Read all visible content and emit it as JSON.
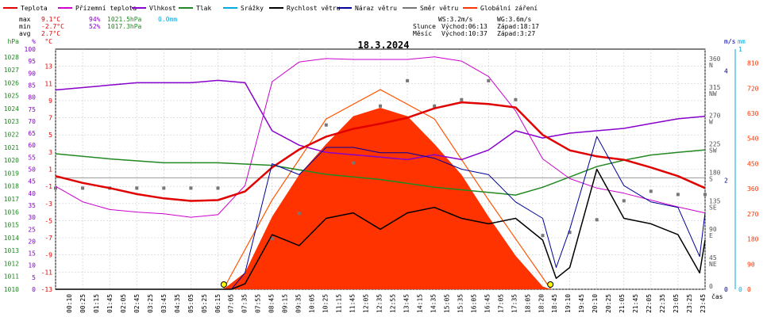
{
  "chart_data": {
    "type": "line",
    "title": "18.3.2024",
    "legend": [
      {
        "name": "Teplota",
        "color": "#e00000"
      },
      {
        "name": "Přízemní teplota",
        "color": "#cc00cc"
      },
      {
        "name": "Vlhkost",
        "color": "#8800cc"
      },
      {
        "name": "Tlak",
        "color": "#228822"
      },
      {
        "name": "Srážky",
        "color": "#00aadd"
      },
      {
        "name": "Rychlost větru",
        "color": "#000000"
      },
      {
        "name": "Náraz větru",
        "color": "#000099"
      },
      {
        "name": "Směr větru",
        "color": "#777777"
      },
      {
        "name": "Globální záření",
        "color": "#ff3300"
      }
    ],
    "stats": {
      "max": {
        "label": "max",
        "temp": "9.1°C",
        "hum": "94%",
        "press": "1021.5hPa",
        "rain": "0.0mm"
      },
      "min": {
        "label": "min",
        "temp": "-2.7°C",
        "hum": "52%",
        "press": "1017.3hPa"
      },
      "avg": {
        "label": "avg",
        "temp": "2.7°C"
      }
    },
    "wind": {
      "ws": "WS:3.2m/s",
      "wg": "WG:3.6m/s"
    },
    "sun": {
      "label": "Slunce",
      "rise": "Východ:06:13",
      "set": "Západ:18:17"
    },
    "moon": {
      "label": "Měsíc",
      "rise": "Východ:10:37",
      "set": "Západ:3:27"
    },
    "axes": {
      "hpa": {
        "unit": "hPa",
        "ticks": [
          "1010",
          "1011",
          "1012",
          "1013",
          "1014",
          "1015",
          "1016",
          "1017",
          "1018",
          "1019",
          "1020",
          "1021",
          "1022",
          "1023",
          "1024",
          "1025",
          "1026",
          "1027",
          "1028"
        ],
        "color": "#228822"
      },
      "pct": {
        "unit": "%",
        "ticks": [
          "0",
          "5",
          "10",
          "15",
          "20",
          "25",
          "30",
          "35",
          "40",
          "45",
          "50",
          "55",
          "60",
          "65",
          "70",
          "75",
          "80",
          "85",
          "90",
          "95",
          "100"
        ],
        "color": "#8800cc"
      },
      "c": {
        "unit": "°C",
        "ticks": [
          "-13",
          "-11",
          "-9",
          "-7",
          "-5",
          "-3",
          "-1",
          "1",
          "3",
          "5",
          "7",
          "9",
          "11",
          "13"
        ],
        "color": "#e00000"
      },
      "ms": {
        "unit": "m/s",
        "ticks": [
          "0",
          "2",
          "4"
        ],
        "color": "#000099"
      },
      "mm": {
        "unit": "mm",
        "ticks": [
          "0",
          "1"
        ],
        "color": "#00aadd"
      },
      "dir": {
        "ticks": [
          "0",
          "45 NE",
          "90 E",
          "135 SE",
          "180 S",
          "225 SW",
          "270 W",
          "315 NW",
          "360 N"
        ],
        "color": "#555555"
      },
      "wm2": {
        "ticks": [
          "0",
          "90",
          "180",
          "270",
          "360",
          "450",
          "540",
          "630",
          "720",
          "810"
        ],
        "color": "#ff3300"
      },
      "time": {
        "label": "čas",
        "ticks": [
          "00:10",
          "00:25",
          "01:15",
          "01:45",
          "02:05",
          "02:45",
          "03:25",
          "03:45",
          "04:35",
          "05:05",
          "05:25",
          "06:15",
          "07:05",
          "07:35",
          "07:55",
          "08:45",
          "09:15",
          "09:35",
          "10:05",
          "10:25",
          "11:15",
          "11:45",
          "12:05",
          "12:35",
          "12:55",
          "13:45",
          "14:15",
          "14:35",
          "15:05",
          "15:35",
          "16:05",
          "16:45",
          "17:05",
          "17:35",
          "18:05",
          "18:20",
          "18:45",
          "19:10",
          "19:45",
          "20:10",
          "20:25",
          "21:05",
          "21:45",
          "22:05",
          "22:35",
          "23:05",
          "23:25",
          "23:45"
        ]
      }
    },
    "series": {
      "temperature_c": {
        "x": [
          0,
          1,
          2,
          3,
          4,
          5,
          6,
          7,
          8,
          9,
          10,
          11,
          12,
          13,
          14,
          15,
          16,
          17,
          18,
          19,
          20,
          21,
          22,
          23,
          24
        ],
        "y": [
          0.2,
          -0.6,
          -1.2,
          -1.9,
          -2.4,
          -2.7,
          -2.6,
          -1.6,
          1.2,
          3.3,
          4.8,
          5.7,
          6.3,
          7.0,
          8.1,
          8.8,
          8.6,
          8.2,
          5.0,
          3.2,
          2.5,
          2.1,
          1.2,
          0.2,
          -1.2
        ]
      },
      "ground_temperature_c": {
        "x": [
          0,
          1,
          2,
          3,
          4,
          5,
          6,
          7,
          8,
          9,
          10,
          11,
          12,
          13,
          14,
          15,
          16,
          17,
          18,
          19,
          20,
          21,
          22,
          23,
          24
        ],
        "y": [
          -1.0,
          -2.8,
          -3.7,
          -4.0,
          -4.2,
          -4.6,
          -4.3,
          -0.9,
          11.2,
          13.5,
          13.9,
          13.8,
          13.8,
          13.8,
          14.1,
          13.6,
          11.8,
          7.8,
          2.2,
          -0.1,
          -1.2,
          -1.8,
          -2.6,
          -3.4,
          -4.1
        ]
      },
      "humidity_pct": {
        "x": [
          0,
          1,
          2,
          3,
          4,
          5,
          6,
          7,
          8,
          9,
          10,
          11,
          12,
          13,
          14,
          15,
          16,
          17,
          18,
          19,
          20,
          21,
          22,
          23,
          24
        ],
        "y": [
          83,
          84,
          85,
          86,
          86,
          86,
          87,
          86,
          66,
          60,
          57,
          56,
          55,
          54,
          56,
          54,
          58,
          66,
          63,
          65,
          66,
          67,
          69,
          71,
          72
        ]
      },
      "pressure_hpa": {
        "x": [
          0,
          2,
          4,
          6,
          8,
          10,
          12,
          14,
          16,
          17,
          18,
          19,
          20,
          21,
          22,
          23,
          24
        ],
        "y": [
          1020.5,
          1020.1,
          1019.8,
          1019.8,
          1019.6,
          1018.9,
          1018.5,
          1017.9,
          1017.5,
          1017.3,
          1017.9,
          1018.7,
          1019.5,
          1020.0,
          1020.4,
          1020.6,
          1020.8
        ]
      },
      "wind_speed_ms": {
        "x": [
          0,
          6.5,
          7,
          8,
          9,
          10,
          11,
          12,
          13,
          14,
          15,
          16,
          17,
          18,
          18.5,
          19,
          20,
          21,
          22,
          23,
          23.8,
          24
        ],
        "y": [
          0,
          0,
          0.1,
          1.0,
          0.8,
          1.3,
          1.4,
          1.1,
          1.4,
          1.5,
          1.3,
          1.2,
          1.3,
          0.9,
          0.2,
          0.4,
          2.2,
          1.3,
          1.2,
          1.0,
          0.3,
          0.9
        ]
      },
      "wind_gust_ms": {
        "x": [
          0,
          6.5,
          7,
          8,
          9,
          10,
          11,
          12,
          13,
          14,
          15,
          16,
          17,
          18,
          18.5,
          19,
          20,
          21,
          22,
          23,
          23.8,
          24
        ],
        "y": [
          0,
          0,
          0.3,
          2.3,
          2.1,
          2.6,
          2.6,
          2.5,
          2.5,
          2.4,
          2.2,
          2.1,
          1.6,
          1.3,
          0.4,
          1.1,
          2.8,
          1.9,
          1.6,
          1.5,
          0.6,
          1.4
        ]
      },
      "solar_wm2": {
        "x": [
          6.2,
          7,
          8,
          9,
          10,
          11,
          12,
          13,
          14,
          15,
          16,
          17,
          18,
          18.3
        ],
        "y": [
          0,
          60,
          260,
          410,
          520,
          620,
          650,
          620,
          520,
          410,
          260,
          120,
          10,
          0
        ]
      },
      "solar_clear_sky_wm2": {
        "x": [
          6.2,
          8,
          10,
          12,
          14,
          16,
          18.3
        ],
        "y": [
          0,
          320,
          610,
          715,
          610,
          320,
          0
        ]
      },
      "wind_direction_deg": {
        "x": [
          0,
          1,
          2,
          3,
          4,
          5,
          6,
          8,
          9,
          10,
          11,
          12,
          13,
          14,
          15,
          16,
          17,
          18,
          19,
          20,
          21,
          22,
          23,
          24
        ],
        "y": [
          160,
          160,
          160,
          160,
          160,
          160,
          160,
          80,
          120,
          260,
          200,
          290,
          330,
          290,
          300,
          330,
          300,
          85,
          90,
          110,
          140,
          155,
          150,
          150
        ]
      }
    }
  }
}
